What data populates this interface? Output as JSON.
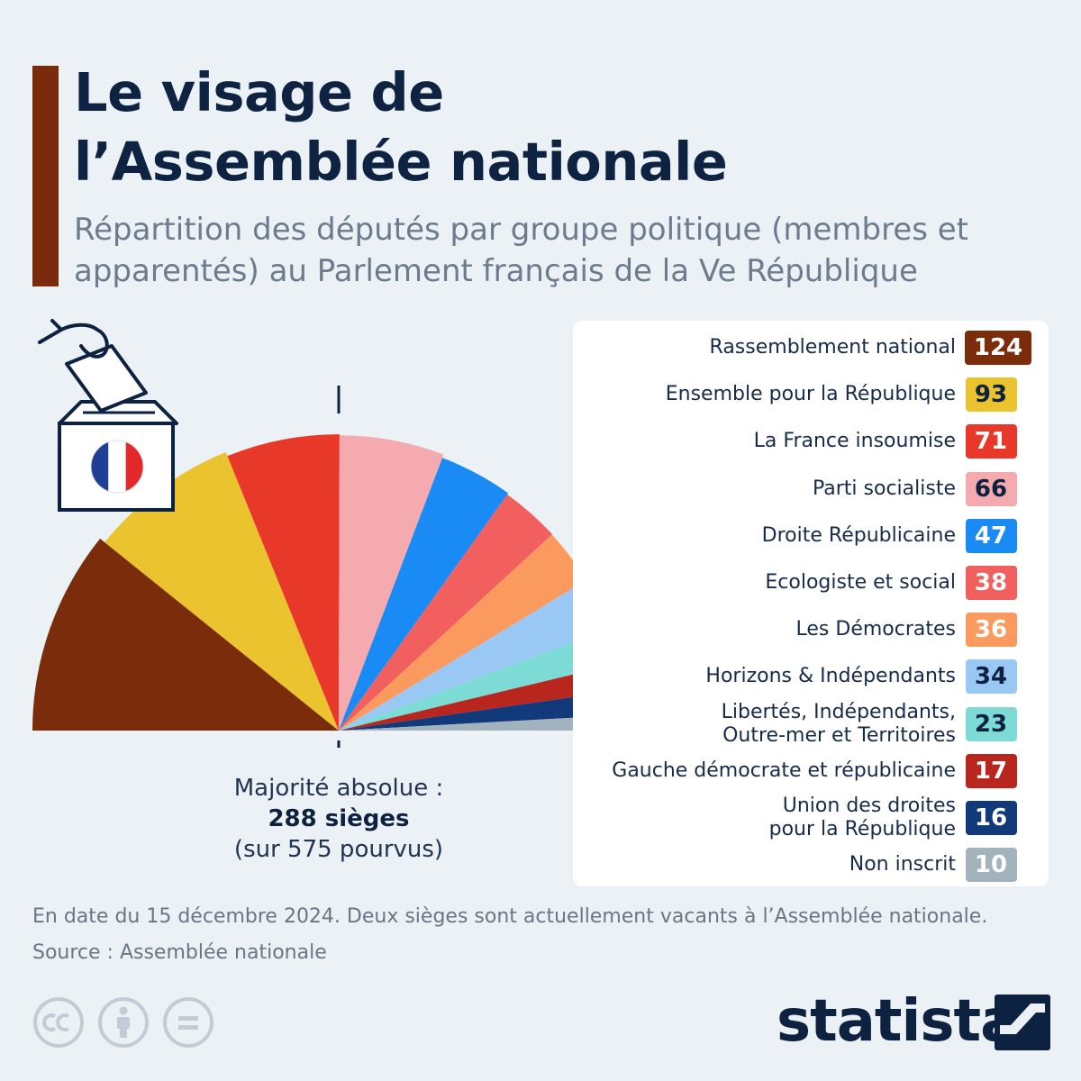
{
  "header": {
    "title_line1": "Le visage de",
    "title_line2": "l’Assemblée nationale",
    "subtitle_line1": "Répartition des députés par groupe politique (membres et",
    "subtitle_line2": "apparentés) au Parlement français de la Ve République"
  },
  "majority": {
    "line1": "Majorité absolue :",
    "line2": "288 sièges",
    "line3": "(sur 575 pourvus)"
  },
  "chart_data": {
    "type": "pie",
    "variant": "semicircle",
    "title": "Le visage de l’Assemblée nationale",
    "total_seats": 575,
    "majority_seats": 288,
    "series": [
      {
        "name": "Rassemblement national",
        "labels": [
          "Rassemblement national"
        ],
        "value": 124,
        "color": "#7b2d0b",
        "text_color": "#ffffff"
      },
      {
        "name": "Ensemble pour la République",
        "labels": [
          "Ensemble pour la République"
        ],
        "value": 93,
        "color": "#ebc32f",
        "text_color": "#0d2240"
      },
      {
        "name": "La France insoumise",
        "labels": [
          "La France insoumise"
        ],
        "value": 71,
        "color": "#e8382a",
        "text_color": "#ffffff"
      },
      {
        "name": "Parti socialiste",
        "labels": [
          "Parti socialiste"
        ],
        "value": 66,
        "color": "#f4aaae",
        "text_color": "#0d2240"
      },
      {
        "name": "Droite Républicaine",
        "labels": [
          "Droite Républicaine"
        ],
        "value": 47,
        "color": "#1a8af4",
        "text_color": "#ffffff"
      },
      {
        "name": "Ecologiste et social",
        "labels": [
          "Ecologiste et social"
        ],
        "value": 38,
        "color": "#f15f5f",
        "text_color": "#ffffff"
      },
      {
        "name": "Les Démocrates",
        "labels": [
          "Les Démocrates"
        ],
        "value": 36,
        "color": "#fb9a5e",
        "text_color": "#ffffff"
      },
      {
        "name": "Horizons & Indépendants",
        "labels": [
          "Horizons & Indépendants"
        ],
        "value": 34,
        "color": "#9ac8f5",
        "text_color": "#0d2240"
      },
      {
        "name": "Libertés, Indépendants, Outre-mer et Territoires",
        "labels": [
          "Libertés, Indépendants,",
          "Outre-mer et Territoires"
        ],
        "value": 23,
        "color": "#7cdcd5",
        "text_color": "#0d2240"
      },
      {
        "name": "Gauche démocrate et républicaine",
        "labels": [
          "Gauche démocrate et républicaine"
        ],
        "value": 17,
        "color": "#b8261e",
        "text_color": "#ffffff"
      },
      {
        "name": "Union des droites pour la République",
        "labels": [
          "Union des droites",
          "pour la République"
        ],
        "value": 16,
        "color": "#123a7a",
        "text_color": "#ffffff"
      },
      {
        "name": "Non inscrit",
        "labels": [
          "Non inscrit"
        ],
        "value": 10,
        "color": "#a3b3be",
        "text_color": "#ffffff"
      }
    ]
  },
  "footer": {
    "note": "En date du 15 décembre 2024. Deux sièges sont actuellement vacants à l’Assemblée nationale.",
    "source": "Source : Assemblée nationale",
    "brand": "statista"
  },
  "icons": {
    "illustration": "ballot-box-icon",
    "flag": "french-flag-icon",
    "license": [
      "cc-icon",
      "attribution-icon",
      "no-derivatives-icon"
    ],
    "brand": "statista-logo-icon"
  }
}
